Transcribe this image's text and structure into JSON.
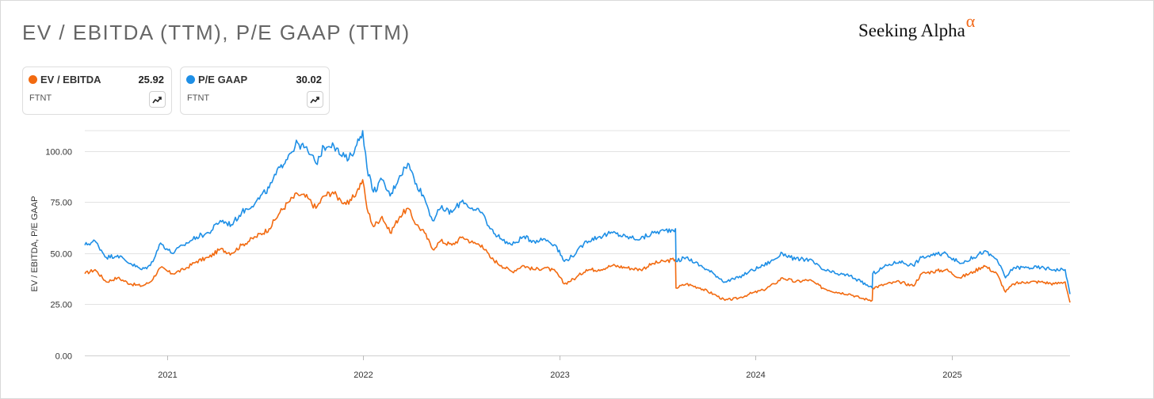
{
  "title": "EV / EBITDA (TTM), P/E GAAP (TTM)",
  "logo": {
    "text": "Seeking Alpha",
    "symbol": "α"
  },
  "cards": [
    {
      "name": "EV / EBITDA",
      "value": "25.92",
      "ticker": "FTNT",
      "color": "#f26a10",
      "icon": "trend-chart-icon"
    },
    {
      "name": "P/E GAAP",
      "value": "30.02",
      "ticker": "FTNT",
      "color": "#1e8fe6",
      "icon": "trend-chart-icon"
    }
  ],
  "chart_data": {
    "type": "line",
    "ylabel": "EV / EBITDA, P/E GAAP",
    "ylim": [
      0,
      110
    ],
    "yticks": [
      0,
      25,
      50,
      75,
      100
    ],
    "ytick_labels": [
      "0.00",
      "25.00",
      "50.00",
      "75.00",
      "100.00"
    ],
    "xlim": [
      "2020-08-01",
      "2025-08-08"
    ],
    "xticks": [
      "2021-01-01",
      "2022-01-01",
      "2023-01-01",
      "2024-01-01",
      "2025-01-01"
    ],
    "xtick_labels": [
      "2021",
      "2022",
      "2023",
      "2024",
      "2025"
    ],
    "grid": true,
    "series": [
      {
        "name": "EV / EBITDA",
        "color": "#f26a10",
        "points": [
          [
            "2020-08-01",
            40
          ],
          [
            "2020-08-20",
            42
          ],
          [
            "2020-09-10",
            36
          ],
          [
            "2020-10-01",
            38
          ],
          [
            "2020-10-25",
            35
          ],
          [
            "2020-11-15",
            34
          ],
          [
            "2020-12-01",
            36
          ],
          [
            "2020-12-20",
            43
          ],
          [
            "2021-01-10",
            40
          ],
          [
            "2021-02-01",
            42
          ],
          [
            "2021-02-25",
            46
          ],
          [
            "2021-03-20",
            48
          ],
          [
            "2021-04-10",
            52
          ],
          [
            "2021-05-01",
            50
          ],
          [
            "2021-05-20",
            54
          ],
          [
            "2021-06-15",
            58
          ],
          [
            "2021-07-10",
            62
          ],
          [
            "2021-07-30",
            70
          ],
          [
            "2021-08-15",
            75
          ],
          [
            "2021-09-01",
            79
          ],
          [
            "2021-09-20",
            77
          ],
          [
            "2021-10-05",
            72
          ],
          [
            "2021-10-20",
            78
          ],
          [
            "2021-11-05",
            80
          ],
          [
            "2021-11-20",
            76
          ],
          [
            "2021-12-05",
            74
          ],
          [
            "2021-12-20",
            80
          ],
          [
            "2021-12-31",
            86
          ],
          [
            "2022-01-08",
            72
          ],
          [
            "2022-01-20",
            63
          ],
          [
            "2022-02-05",
            68
          ],
          [
            "2022-02-20",
            60
          ],
          [
            "2022-03-10",
            68
          ],
          [
            "2022-03-25",
            72
          ],
          [
            "2022-04-10",
            64
          ],
          [
            "2022-04-25",
            60
          ],
          [
            "2022-05-10",
            52
          ],
          [
            "2022-05-25",
            56
          ],
          [
            "2022-06-15",
            54
          ],
          [
            "2022-07-05",
            58
          ],
          [
            "2022-07-25",
            55
          ],
          [
            "2022-08-10",
            54
          ],
          [
            "2022-08-25",
            48
          ],
          [
            "2022-09-15",
            44
          ],
          [
            "2022-10-05",
            41
          ],
          [
            "2022-10-25",
            44
          ],
          [
            "2022-11-15",
            42
          ],
          [
            "2022-12-05",
            43
          ],
          [
            "2022-12-25",
            41
          ],
          [
            "2023-01-10",
            35
          ],
          [
            "2023-02-01",
            38
          ],
          [
            "2023-02-20",
            42
          ],
          [
            "2023-03-15",
            42
          ],
          [
            "2023-04-10",
            44
          ],
          [
            "2023-05-05",
            43
          ],
          [
            "2023-06-01",
            42
          ],
          [
            "2023-06-25",
            45
          ],
          [
            "2023-07-15",
            46
          ],
          [
            "2023-08-05",
            47
          ],
          [
            "2023-08-06",
            33
          ],
          [
            "2023-08-25",
            35
          ],
          [
            "2023-09-20",
            33
          ],
          [
            "2023-10-15",
            30
          ],
          [
            "2023-11-05",
            27
          ],
          [
            "2023-11-30",
            28
          ],
          [
            "2023-12-20",
            30
          ],
          [
            "2024-01-15",
            32
          ],
          [
            "2024-02-05",
            35
          ],
          [
            "2024-02-20",
            38
          ],
          [
            "2024-03-15",
            36
          ],
          [
            "2024-04-10",
            37
          ],
          [
            "2024-05-05",
            33
          ],
          [
            "2024-05-30",
            31
          ],
          [
            "2024-06-25",
            30
          ],
          [
            "2024-07-15",
            28
          ],
          [
            "2024-08-05",
            27
          ],
          [
            "2024-08-06",
            33
          ],
          [
            "2024-09-01",
            35
          ],
          [
            "2024-09-25",
            36
          ],
          [
            "2024-10-20",
            34
          ],
          [
            "2024-11-05",
            40
          ],
          [
            "2024-11-25",
            41
          ],
          [
            "2024-12-20",
            42
          ],
          [
            "2025-01-15",
            38
          ],
          [
            "2025-02-10",
            41
          ],
          [
            "2025-03-01",
            44
          ],
          [
            "2025-03-25",
            40
          ],
          [
            "2025-04-10",
            31
          ],
          [
            "2025-04-25",
            35
          ],
          [
            "2025-05-20",
            36
          ],
          [
            "2025-06-15",
            36
          ],
          [
            "2025-07-10",
            35
          ],
          [
            "2025-07-30",
            36
          ],
          [
            "2025-08-08",
            25.92
          ]
        ]
      },
      {
        "name": "P/E GAAP",
        "color": "#1e8fe6",
        "points": [
          [
            "2020-08-01",
            54
          ],
          [
            "2020-08-20",
            56
          ],
          [
            "2020-09-10",
            48
          ],
          [
            "2020-10-01",
            49
          ],
          [
            "2020-10-25",
            45
          ],
          [
            "2020-11-15",
            42
          ],
          [
            "2020-12-01",
            44
          ],
          [
            "2020-12-20",
            55
          ],
          [
            "2021-01-10",
            50
          ],
          [
            "2021-02-01",
            54
          ],
          [
            "2021-02-25",
            58
          ],
          [
            "2021-03-20",
            60
          ],
          [
            "2021-04-10",
            66
          ],
          [
            "2021-05-01",
            64
          ],
          [
            "2021-05-20",
            70
          ],
          [
            "2021-06-15",
            75
          ],
          [
            "2021-07-10",
            82
          ],
          [
            "2021-07-30",
            92
          ],
          [
            "2021-08-15",
            98
          ],
          [
            "2021-09-01",
            104
          ],
          [
            "2021-09-20",
            100
          ],
          [
            "2021-10-05",
            94
          ],
          [
            "2021-10-20",
            102
          ],
          [
            "2021-11-05",
            104
          ],
          [
            "2021-11-20",
            98
          ],
          [
            "2021-12-05",
            96
          ],
          [
            "2021-12-20",
            103
          ],
          [
            "2021-12-31",
            110
          ],
          [
            "2022-01-08",
            92
          ],
          [
            "2022-01-20",
            80
          ],
          [
            "2022-02-05",
            86
          ],
          [
            "2022-02-20",
            78
          ],
          [
            "2022-03-10",
            88
          ],
          [
            "2022-03-25",
            94
          ],
          [
            "2022-04-10",
            84
          ],
          [
            "2022-04-25",
            77
          ],
          [
            "2022-05-10",
            66
          ],
          [
            "2022-05-25",
            72
          ],
          [
            "2022-06-15",
            70
          ],
          [
            "2022-07-05",
            76
          ],
          [
            "2022-07-25",
            71
          ],
          [
            "2022-08-10",
            70
          ],
          [
            "2022-08-25",
            62
          ],
          [
            "2022-09-15",
            57
          ],
          [
            "2022-10-05",
            54
          ],
          [
            "2022-10-25",
            58
          ],
          [
            "2022-11-15",
            56
          ],
          [
            "2022-12-05",
            57
          ],
          [
            "2022-12-25",
            54
          ],
          [
            "2023-01-10",
            46
          ],
          [
            "2023-02-01",
            50
          ],
          [
            "2023-02-20",
            56
          ],
          [
            "2023-03-15",
            58
          ],
          [
            "2023-04-10",
            60
          ],
          [
            "2023-05-05",
            58
          ],
          [
            "2023-06-01",
            57
          ],
          [
            "2023-06-25",
            60
          ],
          [
            "2023-07-15",
            61
          ],
          [
            "2023-08-05",
            62
          ],
          [
            "2023-08-06",
            46
          ],
          [
            "2023-08-25",
            48
          ],
          [
            "2023-09-20",
            44
          ],
          [
            "2023-10-15",
            40
          ],
          [
            "2023-11-05",
            36
          ],
          [
            "2023-11-30",
            38
          ],
          [
            "2023-12-20",
            41
          ],
          [
            "2024-01-15",
            44
          ],
          [
            "2024-02-05",
            47
          ],
          [
            "2024-02-20",
            50
          ],
          [
            "2024-03-15",
            47
          ],
          [
            "2024-04-10",
            47
          ],
          [
            "2024-05-05",
            42
          ],
          [
            "2024-05-30",
            40
          ],
          [
            "2024-06-25",
            39
          ],
          [
            "2024-07-15",
            36
          ],
          [
            "2024-08-05",
            33
          ],
          [
            "2024-08-06",
            40
          ],
          [
            "2024-09-01",
            44
          ],
          [
            "2024-09-25",
            46
          ],
          [
            "2024-10-20",
            44
          ],
          [
            "2024-11-05",
            48
          ],
          [
            "2024-11-25",
            49
          ],
          [
            "2024-12-20",
            50
          ],
          [
            "2025-01-15",
            45
          ],
          [
            "2025-02-10",
            48
          ],
          [
            "2025-03-01",
            51
          ],
          [
            "2025-03-25",
            47
          ],
          [
            "2025-04-10",
            38
          ],
          [
            "2025-04-25",
            43
          ],
          [
            "2025-05-20",
            43
          ],
          [
            "2025-06-15",
            43
          ],
          [
            "2025-07-10",
            42
          ],
          [
            "2025-07-30",
            42
          ],
          [
            "2025-08-08",
            30.02
          ]
        ]
      }
    ]
  }
}
